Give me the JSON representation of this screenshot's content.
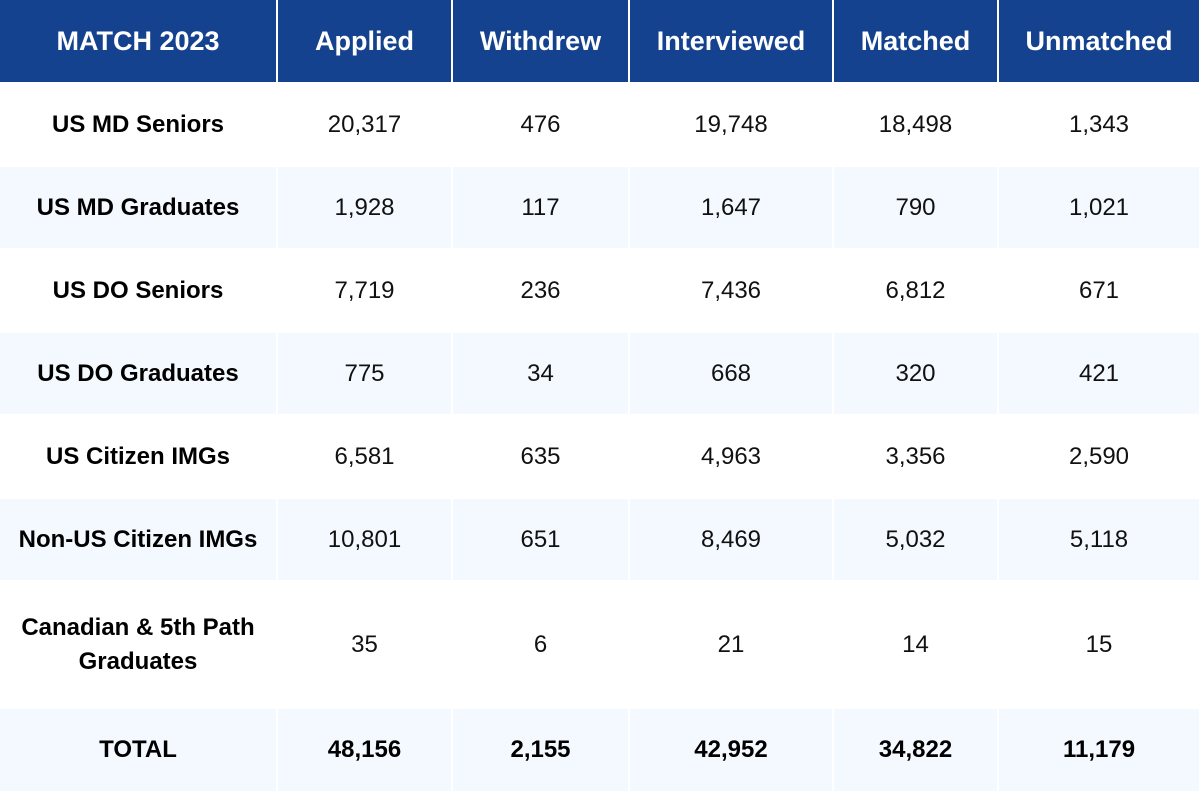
{
  "table": {
    "headers": [
      "MATCH 2023",
      "Applied",
      "Withdrew",
      "Interviewed",
      "Matched",
      "Unmatched"
    ],
    "rows": [
      {
        "label": "US MD Seniors",
        "applied": "20,317",
        "withdrew": "476",
        "interviewed": "19,748",
        "matched": "18,498",
        "unmatched": "1,343"
      },
      {
        "label": "US MD Graduates",
        "applied": "1,928",
        "withdrew": "117",
        "interviewed": "1,647",
        "matched": "790",
        "unmatched": "1,021"
      },
      {
        "label": "US DO Seniors",
        "applied": "7,719",
        "withdrew": "236",
        "interviewed": "7,436",
        "matched": "6,812",
        "unmatched": "671"
      },
      {
        "label": "US DO Graduates",
        "applied": "775",
        "withdrew": "34",
        "interviewed": "668",
        "matched": "320",
        "unmatched": "421"
      },
      {
        "label": "US Citizen IMGs",
        "applied": "6,581",
        "withdrew": "635",
        "interviewed": "4,963",
        "matched": "3,356",
        "unmatched": "2,590"
      },
      {
        "label": "Non-US Citizen IMGs",
        "applied": "10,801",
        "withdrew": "651",
        "interviewed": "8,469",
        "matched": "5,032",
        "unmatched": "5,118"
      },
      {
        "label_line1": "Canadian & 5th Path",
        "label_line2": "Graduates",
        "applied": "35",
        "withdrew": "6",
        "interviewed": "21",
        "matched": "14",
        "unmatched": "15"
      }
    ],
    "total": {
      "label": "TOTAL",
      "applied": "48,156",
      "withdrew": "2,155",
      "interviewed": "42,952",
      "matched": "34,822",
      "unmatched": "11,179"
    }
  },
  "colors": {
    "header_bg": "#14428f",
    "header_text": "#ffffff",
    "row_alt_bg": "#f3f9fe"
  }
}
